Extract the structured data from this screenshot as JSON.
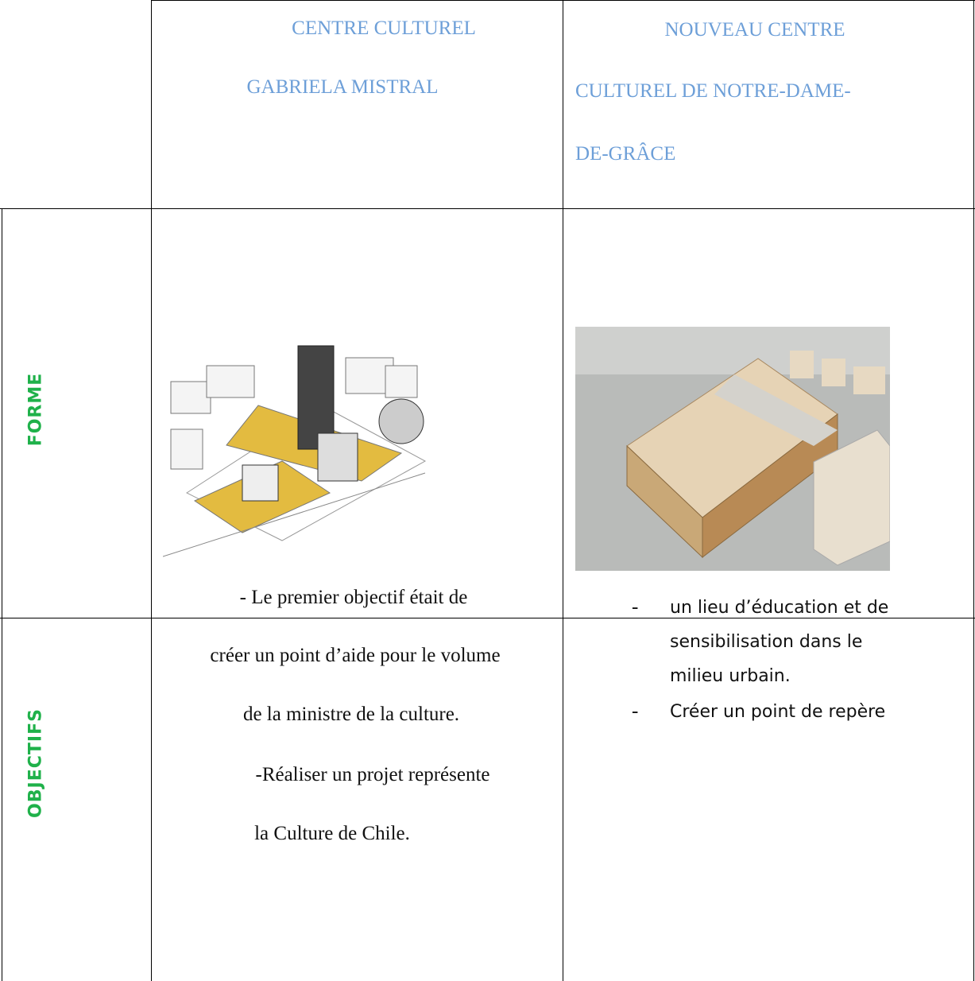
{
  "table": {
    "header": [
      {
        "lines": [
          "CENTRE CULTUREL",
          "GABRIELA MISTRAL"
        ]
      },
      {
        "lines": [
          "NOUVEAU CENTRE",
          "CULTUREL DE NOTRE-DAME-",
          "DE-GRÂCE"
        ]
      }
    ],
    "rows": [
      {
        "label": "FORME"
      },
      {
        "label": "OBJECTIFS",
        "col1": [
          "- Le premier objectif était de",
          "créer un point d’aide pour le volume",
          "de la ministre de la culture.",
          "-Réaliser un projet représente",
          "la Culture de Chile."
        ],
        "col2": [
          {
            "bullet": "-",
            "lines": [
              "un lieu d’éducation et de",
              "sensibilisation dans le",
              "milieu urbain."
            ]
          },
          {
            "bullet": "-",
            "lines": [
              "Créer un point de repère"
            ]
          }
        ]
      }
    ]
  }
}
